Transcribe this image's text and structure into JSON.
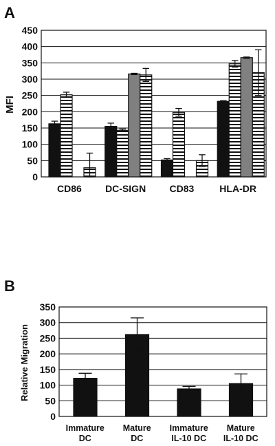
{
  "panels": [
    {
      "letter": "A",
      "ylabel": "MFI",
      "ylim": [
        0,
        450
      ],
      "yticks": [
        0,
        50,
        100,
        150,
        200,
        250,
        300,
        350,
        400,
        450
      ]
    },
    {
      "letter": "B",
      "ylabel": "Relative Migration",
      "ylim": [
        0,
        350
      ],
      "yticks": [
        0,
        50,
        100,
        150,
        200,
        250,
        300,
        350
      ]
    }
  ],
  "chart_data": [
    {
      "type": "bar",
      "categories": [
        "CD86",
        "DC-SIGN",
        "CD83",
        "HLA-DR"
      ],
      "ylabel": "MFI",
      "ylim": [
        0,
        450
      ],
      "grid": true,
      "legend": "none",
      "series": [
        {
          "fill": "black",
          "values": [
            163,
            155,
            52,
            232
          ],
          "errors": [
            8,
            10,
            4,
            2
          ]
        },
        {
          "fill": "stripes",
          "values": [
            252,
            143,
            198,
            347
          ],
          "errors": [
            8,
            4,
            12,
            10
          ]
        },
        {
          "fill": "gray",
          "values": [
            0,
            316,
            0,
            366
          ],
          "errors": [
            0,
            2,
            0,
            2
          ]
        },
        {
          "fill": "stripes",
          "values": [
            28,
            313,
            50,
            320
          ],
          "errors": [
            45,
            20,
            18,
            70
          ]
        }
      ]
    },
    {
      "type": "bar",
      "categories": [
        "Immature DC",
        "Mature DC",
        "Immature IL-10 DC",
        "Mature IL-10 DC"
      ],
      "category_lines": [
        [
          "Immature",
          "DC"
        ],
        [
          "Mature",
          "DC"
        ],
        [
          "Immature",
          "IL-10 DC"
        ],
        [
          "Mature",
          "IL-10 DC"
        ]
      ],
      "ylabel": "Relative Migration",
      "ylim": [
        0,
        350
      ],
      "grid": true,
      "legend": "none",
      "series": [
        {
          "fill": "black",
          "values": [
            122,
            262,
            88,
            105
          ],
          "errors": [
            16,
            53,
            8,
            31
          ]
        }
      ]
    }
  ]
}
